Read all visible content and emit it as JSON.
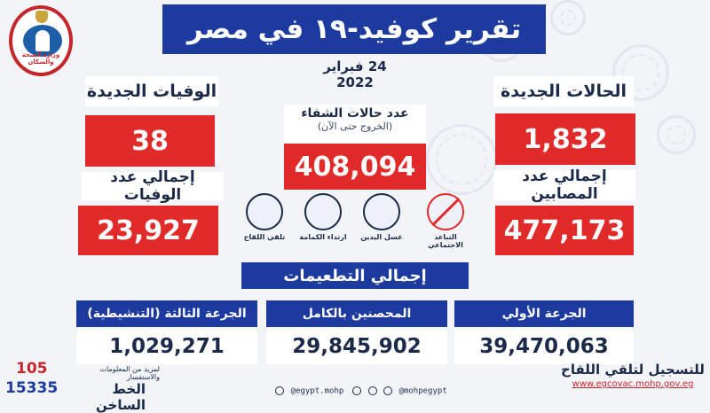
{
  "title": "تقرير كوفيد-١٩ في مصر",
  "date": "24 فبراير 2022",
  "logo": {
    "text": "وزارة الصحة والسكان"
  },
  "new_cases": {
    "label": "الحالات الجديدة",
    "value": "1,832"
  },
  "total_cases": {
    "label": "إجمالي عدد المصابين",
    "value": "477,173"
  },
  "new_deaths": {
    "label": "الوفيات الجديدة",
    "value": "38"
  },
  "total_deaths": {
    "label": "إجمالي عدد الوفيات",
    "value": "23,927"
  },
  "recovered": {
    "label": "عدد حالات الشفاء",
    "sublabel": "(الخروج حتى الآن)",
    "value": "408,094"
  },
  "precautions": [
    {
      "label": "التباعد الاجتماعي",
      "icon": "social-distancing-icon"
    },
    {
      "label": "غسل اليدين",
      "icon": "hand-washing-icon"
    },
    {
      "label": "ارتداء الكمامة",
      "icon": "face-mask-icon"
    },
    {
      "label": "تلقي اللقاح",
      "icon": "vaccine-icon"
    }
  ],
  "vaccinations": {
    "title": "إجمالي التطعيمات",
    "first_dose": {
      "label": "الجرعة الأولي",
      "value": "39,470,063"
    },
    "fully_vaccinated": {
      "label": "المحصنين بالكامل",
      "value": "29,845,902"
    },
    "third_dose": {
      "label": "الجرعة الثالثة (التنشيطية)",
      "value": "1,029,271"
    }
  },
  "footer": {
    "hotline_short": "105",
    "hotline_long": "15335",
    "hotline_info": "لمزيد من المعلومات والاستفسار",
    "hotline_label": "الخط الساخن",
    "social_facebook": "@egypt.mohp",
    "social_handle": "@mohpegypt",
    "vaccine_register": "للتسجيل لتلقي اللقاح",
    "vaccine_url": "www.egcovac.mohp.gov.eg"
  },
  "colors": {
    "primary_blue": "#1d3a9e",
    "alert_red": "#e12a2a",
    "background": "#f2f4f8"
  }
}
